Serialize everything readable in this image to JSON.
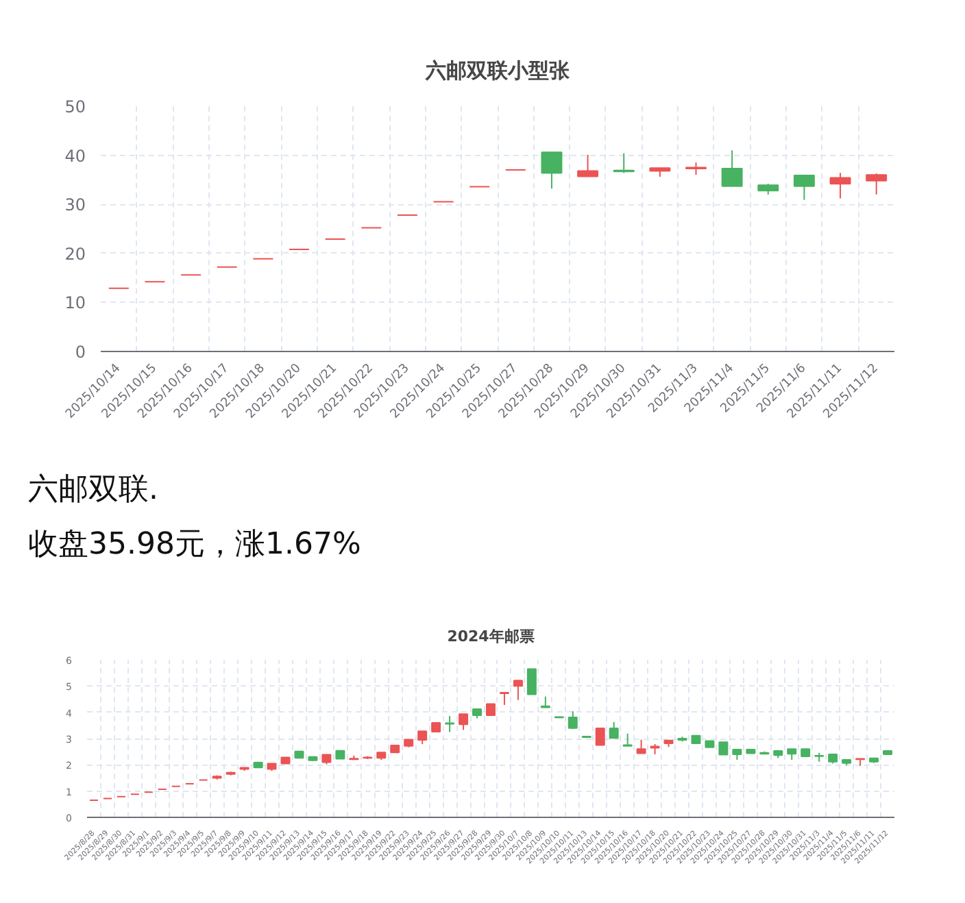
{
  "chart_data": [
    {
      "type": "candlestick",
      "title": "六邮双联小型张",
      "categories": [
        "2025/10/14",
        "2025/10/15",
        "2025/10/16",
        "2025/10/17",
        "2025/10/18",
        "2025/10/20",
        "2025/10/21",
        "2025/10/22",
        "2025/10/23",
        "2025/10/24",
        "2025/10/25",
        "2025/10/27",
        "2025/10/28",
        "2025/10/29",
        "2025/10/30",
        "2025/10/31",
        "2025/11/3",
        "2025/11/4",
        "2025/11/5",
        "2025/11/6",
        "2025/11/11",
        "2025/11/12"
      ],
      "ohlc": [
        [
          12.9,
          12.9,
          12.9,
          12.9
        ],
        [
          14.2,
          14.2,
          14.2,
          14.2
        ],
        [
          15.6,
          15.6,
          15.6,
          15.6
        ],
        [
          17.2,
          17.2,
          17.2,
          17.2
        ],
        [
          18.9,
          18.9,
          18.9,
          18.9
        ],
        [
          20.8,
          20.8,
          20.8,
          20.8
        ],
        [
          22.9,
          22.9,
          22.9,
          22.9
        ],
        [
          25.2,
          25.2,
          25.2,
          25.2
        ],
        [
          27.8,
          27.8,
          27.8,
          27.8
        ],
        [
          30.5,
          30.5,
          30.5,
          30.5
        ],
        [
          33.6,
          33.6,
          33.6,
          33.6
        ],
        [
          37.0,
          37.0,
          37.0,
          37.0
        ],
        [
          40.6,
          40.6,
          33.2,
          36.4
        ],
        [
          35.7,
          40.1,
          35.7,
          36.8
        ],
        [
          36.9,
          40.4,
          36.4,
          36.7
        ],
        [
          36.8,
          37.4,
          35.6,
          37.4
        ],
        [
          37.3,
          38.5,
          36.0,
          37.5
        ],
        [
          37.3,
          41.0,
          33.7,
          33.7
        ],
        [
          33.9,
          34.2,
          32.0,
          32.8
        ],
        [
          35.9,
          35.9,
          30.9,
          33.7
        ],
        [
          34.2,
          36.4,
          31.2,
          35.4
        ],
        [
          34.8,
          36.3,
          32.0,
          36.0
        ]
      ],
      "colors": [
        "#eb5454",
        "#eb5454",
        "#eb5454",
        "#eb5454",
        "#eb5454",
        "#eb5454",
        "#eb5454",
        "#eb5454",
        "#eb5454",
        "#eb5454",
        "#eb5454",
        "#eb5454",
        "#47b262",
        "#eb5454",
        "#47b262",
        "#eb5454",
        "#eb5454",
        "#47b262",
        "#47b262",
        "#47b262",
        "#eb5454",
        "#eb5454"
      ],
      "ylim": [
        0,
        50
      ],
      "yticks": [
        0,
        10,
        20,
        30,
        40,
        50
      ],
      "grid": true
    },
    {
      "type": "other",
      "annotations": [
        "六邮双联.",
        "收盘35.98元，涨1.67%"
      ]
    },
    {
      "type": "candlestick",
      "title": "2024年邮票",
      "categories": [
        "2025/8/28",
        "2025/8/29",
        "2025/8/30",
        "2025/8/31",
        "2025/9/1",
        "2025/9/2",
        "2025/9/3",
        "2025/9/4",
        "2025/9/5",
        "2025/9/7",
        "2025/9/8",
        "2025/9/9",
        "2025/9/10",
        "2025/9/11",
        "2025/9/12",
        "2025/9/13",
        "2025/9/14",
        "2025/9/15",
        "2025/9/16",
        "2025/9/17",
        "2025/9/18",
        "2025/9/19",
        "2025/9/22",
        "2025/9/23",
        "2025/9/24",
        "2025/9/25",
        "2025/9/26",
        "2025/9/27",
        "2025/9/28",
        "2025/9/29",
        "2025/9/30",
        "2025/10/7",
        "2025/10/8",
        "2025/10/9",
        "2025/10/10",
        "2025/10/11",
        "2025/10/13",
        "2025/10/14",
        "2025/10/15",
        "2025/10/16",
        "2025/10/17",
        "2025/10/18",
        "2025/10/20",
        "2025/10/21",
        "2025/10/22",
        "2025/10/23",
        "2025/10/24",
        "2025/10/25",
        "2025/10/27",
        "2025/10/28",
        "2025/10/29",
        "2025/10/30",
        "2025/10/31",
        "2025/11/3",
        "2025/11/4",
        "2025/11/5",
        "2025/11/6",
        "2025/11/11",
        "2025/11/12"
      ],
      "ohlc": [
        [
          0.65,
          0.65,
          0.65,
          0.65
        ],
        [
          0.72,
          0.72,
          0.72,
          0.72
        ],
        [
          0.79,
          0.79,
          0.79,
          0.79
        ],
        [
          0.88,
          0.88,
          0.88,
          0.88
        ],
        [
          0.96,
          0.96,
          0.96,
          0.96
        ],
        [
          1.07,
          1.07,
          1.07,
          1.07
        ],
        [
          1.18,
          1.18,
          1.18,
          1.18
        ],
        [
          1.28,
          1.28,
          1.28,
          1.28
        ],
        [
          1.42,
          1.42,
          1.42,
          1.42
        ],
        [
          1.5,
          1.6,
          1.44,
          1.56
        ],
        [
          1.65,
          1.74,
          1.6,
          1.7
        ],
        [
          1.84,
          1.91,
          1.77,
          1.89
        ],
        [
          2.09,
          2.12,
          1.88,
          1.9
        ],
        [
          1.84,
          2.05,
          1.77,
          2.05
        ],
        [
          2.05,
          2.28,
          2.05,
          2.28
        ],
        [
          2.51,
          2.51,
          2.26,
          2.26
        ],
        [
          2.3,
          2.32,
          2.15,
          2.17
        ],
        [
          2.1,
          2.39,
          2.02,
          2.39
        ],
        [
          2.54,
          2.54,
          2.23,
          2.23
        ],
        [
          2.21,
          2.35,
          2.2,
          2.24
        ],
        [
          2.26,
          2.33,
          2.22,
          2.28
        ],
        [
          2.26,
          2.47,
          2.19,
          2.47
        ],
        [
          2.47,
          2.74,
          2.45,
          2.74
        ],
        [
          2.72,
          2.96,
          2.67,
          2.96
        ],
        [
          2.95,
          3.28,
          2.79,
          3.28
        ],
        [
          3.26,
          3.6,
          3.26,
          3.6
        ],
        [
          3.59,
          3.86,
          3.25,
          3.56
        ],
        [
          3.54,
          3.93,
          3.33,
          3.93
        ],
        [
          4.12,
          4.12,
          3.77,
          3.89
        ],
        [
          3.89,
          4.32,
          3.89,
          4.32
        ],
        [
          4.72,
          4.77,
          4.28,
          4.75
        ],
        [
          5.0,
          5.21,
          4.47,
          5.21
        ],
        [
          5.65,
          5.65,
          4.68,
          4.68
        ],
        [
          4.23,
          4.6,
          4.17,
          4.19
        ],
        [
          3.82,
          3.84,
          3.78,
          3.8
        ],
        [
          3.81,
          4.04,
          3.37,
          3.4
        ],
        [
          3.08,
          3.08,
          3.05,
          3.05
        ],
        [
          2.75,
          3.39,
          2.75,
          3.39
        ],
        [
          3.39,
          3.63,
          3.02,
          3.02
        ],
        [
          2.75,
          3.19,
          2.72,
          2.72
        ],
        [
          2.44,
          2.96,
          2.44,
          2.6
        ],
        [
          2.65,
          2.79,
          2.4,
          2.7
        ],
        [
          2.82,
          2.93,
          2.68,
          2.93
        ],
        [
          3.0,
          3.07,
          2.89,
          2.95
        ],
        [
          3.11,
          3.11,
          2.82,
          2.82
        ],
        [
          2.91,
          2.91,
          2.67,
          2.67
        ],
        [
          2.86,
          2.86,
          2.39,
          2.39
        ],
        [
          2.58,
          2.58,
          2.19,
          2.4
        ],
        [
          2.58,
          2.58,
          2.44,
          2.44
        ],
        [
          2.46,
          2.51,
          2.4,
          2.42
        ],
        [
          2.53,
          2.53,
          2.26,
          2.37
        ],
        [
          2.6,
          2.6,
          2.19,
          2.42
        ],
        [
          2.6,
          2.6,
          2.32,
          2.32
        ],
        [
          2.35,
          2.46,
          2.12,
          2.33
        ],
        [
          2.4,
          2.4,
          2.05,
          2.12
        ],
        [
          2.19,
          2.19,
          1.98,
          2.07
        ],
        [
          2.21,
          2.23,
          1.96,
          2.23
        ],
        [
          2.25,
          2.25,
          2.07,
          2.12
        ],
        [
          2.53,
          2.53,
          2.4,
          2.4
        ]
      ],
      "colors": [
        "#eb5454",
        "#eb5454",
        "#eb5454",
        "#eb5454",
        "#eb5454",
        "#eb5454",
        "#eb5454",
        "#eb5454",
        "#eb5454",
        "#eb5454",
        "#eb5454",
        "#eb5454",
        "#47b262",
        "#eb5454",
        "#eb5454",
        "#47b262",
        "#47b262",
        "#eb5454",
        "#47b262",
        "#eb5454",
        "#eb5454",
        "#eb5454",
        "#eb5454",
        "#eb5454",
        "#eb5454",
        "#eb5454",
        "#47b262",
        "#eb5454",
        "#47b262",
        "#eb5454",
        "#eb5454",
        "#eb5454",
        "#47b262",
        "#47b262",
        "#47b262",
        "#47b262",
        "#47b262",
        "#eb5454",
        "#47b262",
        "#47b262",
        "#eb5454",
        "#eb5454",
        "#eb5454",
        "#47b262",
        "#47b262",
        "#47b262",
        "#47b262",
        "#47b262",
        "#47b262",
        "#47b262",
        "#47b262",
        "#47b262",
        "#47b262",
        "#47b262",
        "#47b262",
        "#47b262",
        "#eb5454",
        "#47b262",
        "#47b262"
      ],
      "ylim": [
        0,
        6
      ],
      "yticks": [
        0,
        1,
        2,
        3,
        4,
        5,
        6
      ],
      "grid": true
    }
  ]
}
